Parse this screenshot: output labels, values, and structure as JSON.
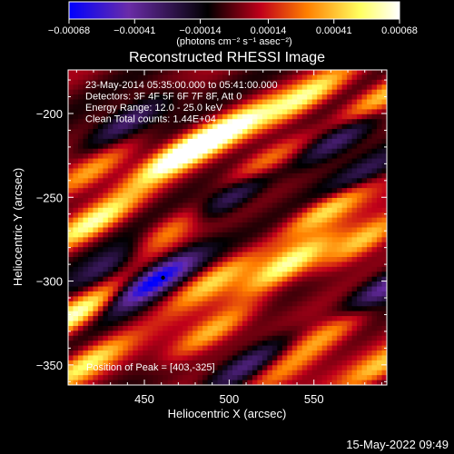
{
  "chart_data": {
    "type": "heatmap",
    "title": "Reconstructed RHESSI Image",
    "xlabel": "Heliocentric X (arcsec)",
    "ylabel": "Heliocentric Y (arcsec)",
    "xlim": [
      405,
      593
    ],
    "ylim": [
      -362,
      -174
    ],
    "x_ticks": [
      450,
      500,
      550
    ],
    "x_tick_labels": [
      "450",
      "500",
      "550"
    ],
    "y_ticks": [
      -200,
      -250,
      -300,
      -350
    ],
    "y_tick_labels": [
      "−200",
      "−250",
      "−300",
      "−350"
    ],
    "colorbar": {
      "range": [
        -0.00068,
        0.00068
      ],
      "ticks": [
        -0.00068,
        -0.00041,
        -0.00014,
        0.00014,
        0.00041,
        0.00068
      ],
      "tick_labels": [
        "−0.00068",
        "−0.00041",
        "−0.00014",
        "0.00014",
        "0.00041",
        "0.00068"
      ],
      "units_label": "(photons cm⁻² s⁻¹ asec⁻²)",
      "color_stops": [
        "#0000ff",
        "#6a2ca8",
        "#000000",
        "#c0001a",
        "#ff7f00",
        "#ffff60",
        "#ffffff"
      ]
    },
    "info_lines": [
      "23-May-2014 05:35:00.000 to 05:41:00.000",
      "Detectors: 3F 4F 5F 6F 7F 8F, Att 0",
      "Energy Range: 12.0 - 25.0 keV",
      "Clean     Total counts: 1.44E+04"
    ],
    "peak_label": "Position of Peak = [403,-325]",
    "marker": {
      "x": 461,
      "y": -298
    },
    "stripe_bands": [
      {
        "x": 545,
        "y": -190,
        "level": 0.75
      },
      {
        "x": 590,
        "y": -190,
        "level": 0.7
      },
      {
        "x": 500,
        "y": -210,
        "level": 0.85
      },
      {
        "x": 470,
        "y": -225,
        "level": 1.0
      },
      {
        "x": 418,
        "y": -235,
        "level": 0.65
      },
      {
        "x": 560,
        "y": -255,
        "level": 0.85
      },
      {
        "x": 520,
        "y": -230,
        "level": 0.6
      },
      {
        "x": 420,
        "y": -265,
        "level": 0.8
      },
      {
        "x": 465,
        "y": -270,
        "level": 0.6
      },
      {
        "x": 535,
        "y": -290,
        "level": 0.8
      },
      {
        "x": 490,
        "y": -300,
        "level": 0.65
      },
      {
        "x": 580,
        "y": -275,
        "level": 0.75
      },
      {
        "x": 410,
        "y": -320,
        "level": 0.9
      },
      {
        "x": 490,
        "y": -330,
        "level": 0.7
      },
      {
        "x": 560,
        "y": -330,
        "level": 0.6
      },
      {
        "x": 415,
        "y": -350,
        "level": 0.7
      },
      {
        "x": 530,
        "y": -355,
        "level": 0.5
      },
      {
        "x": 590,
        "y": -350,
        "level": 0.6
      },
      {
        "x": 455,
        "y": -300,
        "level": -1.0
      },
      {
        "x": 500,
        "y": -250,
        "level": -0.7
      },
      {
        "x": 440,
        "y": -205,
        "level": -0.6
      },
      {
        "x": 565,
        "y": -215,
        "level": -0.65
      },
      {
        "x": 590,
        "y": -305,
        "level": -0.7
      },
      {
        "x": 510,
        "y": -350,
        "level": -0.6
      },
      {
        "x": 430,
        "y": -290,
        "level": -0.5
      },
      {
        "x": 575,
        "y": -240,
        "level": -0.5
      }
    ]
  },
  "timestamp": "15-May-2022 09:49"
}
